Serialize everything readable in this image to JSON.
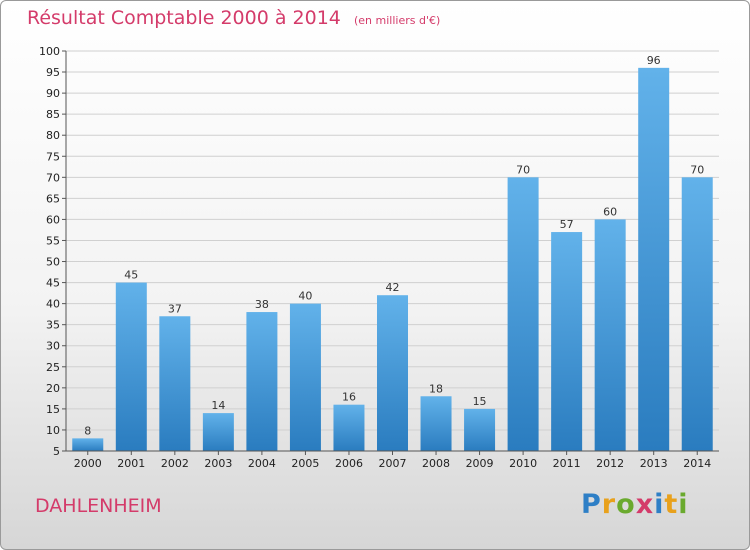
{
  "header": {
    "title": "Résultat Comptable 2000 à 2014",
    "subtitle": "(en milliers d'€)"
  },
  "footer": {
    "commune": "DAHLENHEIM",
    "logo": [
      "P",
      "r",
      "o",
      "x",
      "i",
      "t",
      "i"
    ],
    "logo_colors": [
      "#2e7fc6",
      "#e8a11c",
      "#6aaa2e",
      "#d43b6a",
      "#2e7fc6",
      "#e8a11c",
      "#6aaa2e"
    ]
  },
  "chart_data": {
    "type": "bar",
    "title": "Résultat Comptable 2000 à 2014",
    "subtitle": "(en milliers d'€)",
    "categories": [
      "2000",
      "2001",
      "2002",
      "2003",
      "2004",
      "2005",
      "2006",
      "2007",
      "2008",
      "2009",
      "2010",
      "2011",
      "2012",
      "2013",
      "2014"
    ],
    "values": [
      8,
      45,
      37,
      14,
      38,
      40,
      16,
      42,
      18,
      15,
      70,
      57,
      60,
      96,
      70
    ],
    "ylim": [
      5,
      100
    ],
    "yticks": [
      5,
      10,
      15,
      20,
      25,
      30,
      35,
      40,
      45,
      50,
      55,
      60,
      65,
      70,
      75,
      80,
      85,
      90,
      95,
      100
    ],
    "grid": true,
    "bar_color_top": "#62b2ea",
    "bar_color_bottom": "#2a7cbf",
    "data_labels": true
  }
}
